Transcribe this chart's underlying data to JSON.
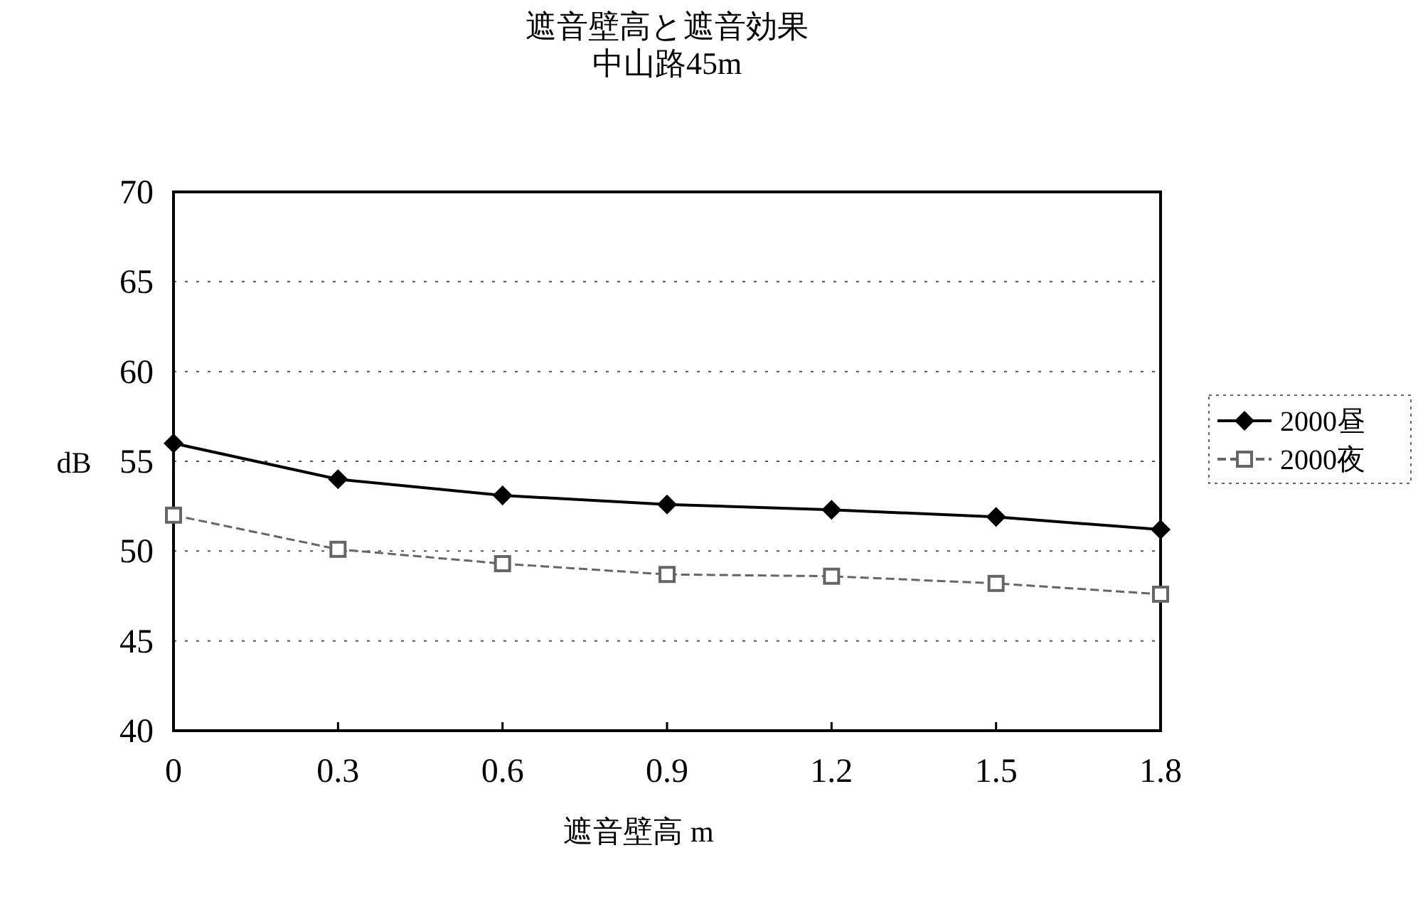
{
  "chart_data": {
    "type": "line",
    "title": "遮音壁高と遮音効果",
    "subtitle": "中山路45m",
    "xlabel": "遮音壁高 m",
    "ylabel": "dB",
    "categories": [
      "0",
      "0.3",
      "0.6",
      "0.9",
      "1.2",
      "1.5",
      "1.8"
    ],
    "ylim": [
      40,
      70
    ],
    "yticks": [
      40,
      45,
      50,
      55,
      60,
      65,
      70
    ],
    "grid": "y",
    "legend": "right",
    "series": [
      {
        "name": "2000昼",
        "color": "#000000",
        "marker": "diamond",
        "line_style": "solid",
        "values": [
          56.0,
          54.0,
          53.1,
          52.6,
          52.3,
          51.9,
          51.2
        ]
      },
      {
        "name": "2000夜",
        "color": "#666666",
        "marker": "square",
        "line_style": "dashed",
        "values": [
          52.0,
          50.1,
          49.3,
          48.7,
          48.6,
          48.2,
          47.6
        ]
      }
    ]
  }
}
